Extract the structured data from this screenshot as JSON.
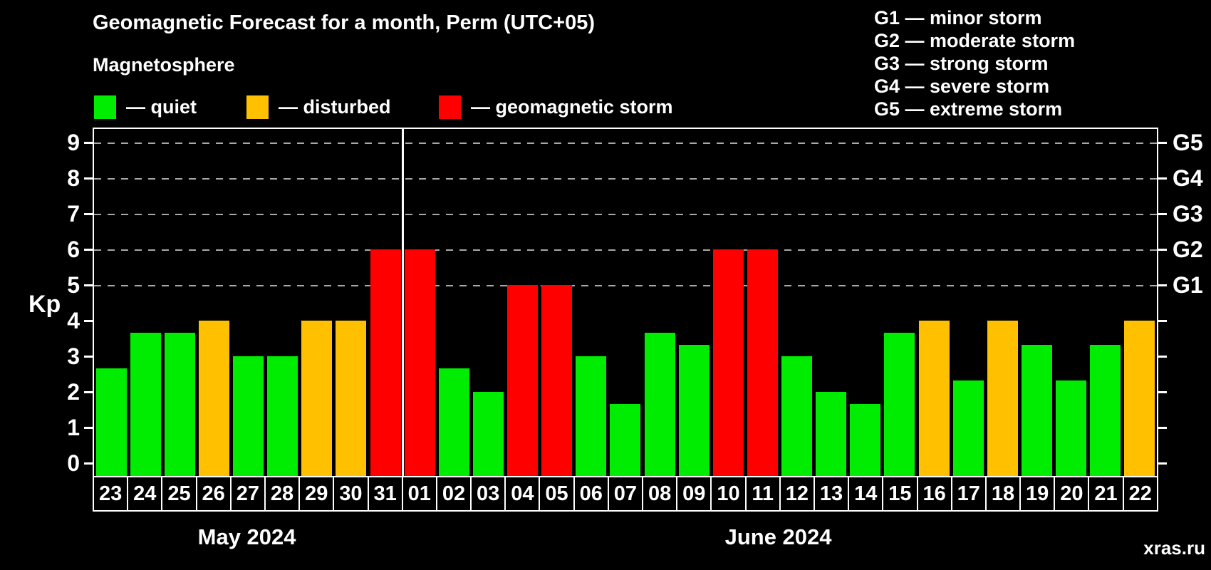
{
  "title": "Geomagnetic Forecast for a month, Perm (UTC+05)",
  "subtitle": "Magnetosphere",
  "legend": {
    "items": [
      {
        "label": "— quiet",
        "status": "quiet"
      },
      {
        "label": "— disturbed",
        "status": "disturbed"
      },
      {
        "label": "— geomagnetic storm",
        "status": "storm"
      }
    ]
  },
  "storm_scale": [
    {
      "level": "G1",
      "desc": "minor storm"
    },
    {
      "level": "G2",
      "desc": "moderate storm"
    },
    {
      "level": "G3",
      "desc": "strong storm"
    },
    {
      "level": "G4",
      "desc": "severe storm"
    },
    {
      "level": "G5",
      "desc": "extreme storm"
    }
  ],
  "axis": {
    "y_label": "Kp",
    "y_ticks": [
      0,
      1,
      2,
      3,
      4,
      5,
      6,
      7,
      8,
      9
    ],
    "g_labels": [
      {
        "kp": 5,
        "label": "G1"
      },
      {
        "kp": 6,
        "label": "G2"
      },
      {
        "kp": 7,
        "label": "G3"
      },
      {
        "kp": 8,
        "label": "G4"
      },
      {
        "kp": 9,
        "label": "G5"
      }
    ]
  },
  "colors": {
    "quiet": "#00ec00",
    "disturbed": "#ffc000",
    "storm": "#fe0000",
    "grid": "#a8a8a8",
    "axis": "#ffffff",
    "text": "#ffffff",
    "watermark": "#6f6f6f"
  },
  "chart_data": {
    "type": "bar",
    "title": "Geomagnetic Forecast for a month, Perm (UTC+05)",
    "ylabel": "Kp",
    "ylim": [
      0,
      9.4
    ],
    "grid_levels": [
      5,
      6,
      7,
      8,
      9
    ],
    "legend_position": "top",
    "months": [
      {
        "name": "May 2024",
        "days": [
          {
            "day": "23",
            "kp": 2.67,
            "status": "quiet"
          },
          {
            "day": "24",
            "kp": 3.67,
            "status": "quiet"
          },
          {
            "day": "25",
            "kp": 3.67,
            "status": "quiet"
          },
          {
            "day": "26",
            "kp": 4.0,
            "status": "disturbed"
          },
          {
            "day": "27",
            "kp": 3.0,
            "status": "quiet"
          },
          {
            "day": "28",
            "kp": 3.0,
            "status": "quiet"
          },
          {
            "day": "29",
            "kp": 4.0,
            "status": "disturbed"
          },
          {
            "day": "30",
            "kp": 4.0,
            "status": "disturbed"
          },
          {
            "day": "31",
            "kp": 6.0,
            "status": "storm"
          }
        ]
      },
      {
        "name": "June 2024",
        "days": [
          {
            "day": "01",
            "kp": 6.0,
            "status": "storm"
          },
          {
            "day": "02",
            "kp": 2.67,
            "status": "quiet"
          },
          {
            "day": "03",
            "kp": 2.0,
            "status": "quiet"
          },
          {
            "day": "04",
            "kp": 5.0,
            "status": "storm"
          },
          {
            "day": "05",
            "kp": 5.0,
            "status": "storm"
          },
          {
            "day": "06",
            "kp": 3.0,
            "status": "quiet"
          },
          {
            "day": "07",
            "kp": 1.67,
            "status": "quiet"
          },
          {
            "day": "08",
            "kp": 3.67,
            "status": "quiet"
          },
          {
            "day": "09",
            "kp": 3.33,
            "status": "quiet"
          },
          {
            "day": "10",
            "kp": 6.0,
            "status": "storm"
          },
          {
            "day": "11",
            "kp": 6.0,
            "status": "storm"
          },
          {
            "day": "12",
            "kp": 3.0,
            "status": "quiet"
          },
          {
            "day": "13",
            "kp": 2.0,
            "status": "quiet"
          },
          {
            "day": "14",
            "kp": 1.67,
            "status": "quiet"
          },
          {
            "day": "15",
            "kp": 3.67,
            "status": "quiet"
          },
          {
            "day": "16",
            "kp": 4.0,
            "status": "disturbed"
          },
          {
            "day": "17",
            "kp": 2.33,
            "status": "quiet"
          },
          {
            "day": "18",
            "kp": 4.0,
            "status": "disturbed"
          },
          {
            "day": "19",
            "kp": 3.33,
            "status": "quiet"
          },
          {
            "day": "20",
            "kp": 2.33,
            "status": "quiet"
          },
          {
            "day": "21",
            "kp": 3.33,
            "status": "quiet"
          },
          {
            "day": "22",
            "kp": 4.0,
            "status": "disturbed"
          }
        ]
      }
    ]
  },
  "watermark": "xras.ru"
}
